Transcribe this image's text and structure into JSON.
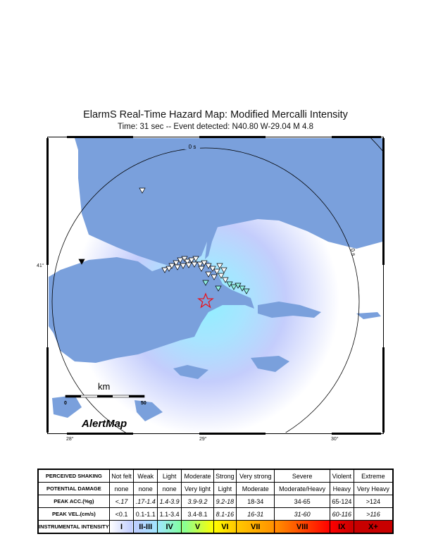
{
  "title": "ElarmS Real-Time Hazard Map: Modified Mercalli Intensity",
  "subtitle": "Time: 31 sec -- Event detected: N40.80 W-29.04 M 4.8",
  "map": {
    "contour_label_top": "0 s",
    "contour_label_right": "0 s",
    "lat_tick": "41°",
    "lon_ticks": [
      "28°",
      "29°",
      "30°"
    ],
    "scale_label": "km",
    "scale_ticks": [
      "0",
      "50"
    ],
    "logo": "AlertMap",
    "epicenter_icon": "star-icon",
    "station_icon": "triangle-down-icon",
    "colors": {
      "sea": "#7aa0dc",
      "epicenter": "#e8141e",
      "contour": "#000000"
    }
  },
  "legend": {
    "rows": [
      {
        "header": "PERCEIVED SHAKING",
        "cells": [
          "Not felt",
          "Weak",
          "Light",
          "Moderate",
          "Strong",
          "Very strong",
          "Severe",
          "Violent",
          "Extreme"
        ]
      },
      {
        "header": "POTENTIAL DAMAGE",
        "cells": [
          "none",
          "none",
          "none",
          "Very light",
          "Light",
          "Moderate",
          "Moderate/Heavy",
          "Heavy",
          "Very Heavy"
        ]
      },
      {
        "header": "PEAK ACC.(%g)",
        "cells": [
          "<.17",
          ".17-1.4",
          "1.4-3.9",
          "3.9-9.2",
          "9.2-18",
          "18-34",
          "34-65",
          "65-124",
          ">124"
        ]
      },
      {
        "header": "PEAK VEL.(cm/s)",
        "cells": [
          "<0.1",
          "0.1-1.1",
          "1.1-3.4",
          "3.4-8.1",
          "8.1-16",
          "16-31",
          "31-60",
          "60-116",
          ">116"
        ]
      },
      {
        "header": "INSTRUMENTAL INTENSITY",
        "cells": [
          "I",
          "II-III",
          "IV",
          "V",
          "VI",
          "VII",
          "VIII",
          "IX",
          "X+"
        ]
      }
    ],
    "intensity_colors": [
      "#ffffff",
      "#bfccff",
      "#a0e6ff",
      "#80ffa0",
      "#ffff00",
      "#ffc800",
      "#ff9100",
      "#ff0000",
      "#c80000"
    ]
  }
}
